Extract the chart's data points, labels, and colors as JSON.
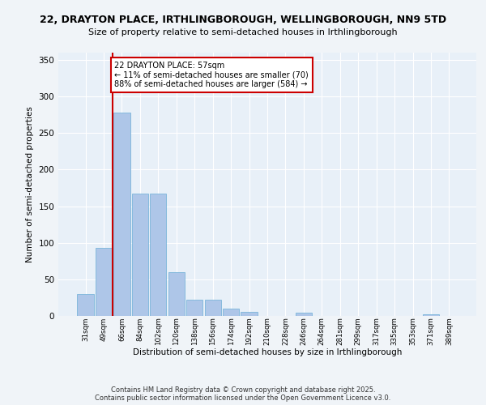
{
  "title_line1": "22, DRAYTON PLACE, IRTHLINGBOROUGH, WELLINGBOROUGH, NN9 5TD",
  "title_line2": "Size of property relative to semi-detached houses in Irthlingborough",
  "xlabel": "Distribution of semi-detached houses by size in Irthlingborough",
  "ylabel": "Number of semi-detached properties",
  "footer_line1": "Contains HM Land Registry data © Crown copyright and database right 2025.",
  "footer_line2": "Contains public sector information licensed under the Open Government Licence v3.0.",
  "categories": [
    "31sqm",
    "49sqm",
    "66sqm",
    "84sqm",
    "102sqm",
    "120sqm",
    "138sqm",
    "156sqm",
    "174sqm",
    "192sqm",
    "210sqm",
    "228sqm",
    "246sqm",
    "264sqm",
    "281sqm",
    "299sqm",
    "317sqm",
    "335sqm",
    "353sqm",
    "371sqm",
    "389sqm"
  ],
  "values": [
    30,
    93,
    278,
    167,
    167,
    60,
    22,
    22,
    10,
    5,
    0,
    0,
    4,
    0,
    0,
    0,
    0,
    0,
    0,
    2,
    0
  ],
  "bar_color": "#aec6e8",
  "bar_edge_color": "#6aaed6",
  "background_color": "#e8f0f8",
  "grid_color": "#ffffff",
  "annotation_title": "22 DRAYTON PLACE: 57sqm",
  "annotation_line2": "← 11% of semi-detached houses are smaller (70)",
  "annotation_line3": "88% of semi-detached houses are larger (584) →",
  "annotation_box_color": "#ffffff",
  "annotation_border_color": "#cc0000",
  "red_line_color": "#cc0000",
  "ylim": [
    0,
    360
  ],
  "yticks": [
    0,
    50,
    100,
    150,
    200,
    250,
    300,
    350
  ]
}
